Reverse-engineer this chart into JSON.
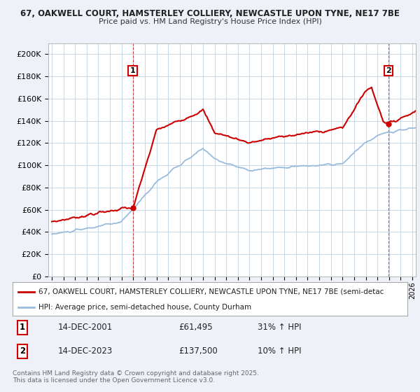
{
  "title1": "67, OAKWELL COURT, HAMSTERLEY COLLIERY, NEWCASTLE UPON TYNE, NE17 7BE",
  "title2": "Price paid vs. HM Land Registry's House Price Index (HPI)",
  "bg_color": "#eef2f8",
  "plot_bg_color": "#ffffff",
  "grid_color": "#c8d8e8",
  "price_color": "#cc0000",
  "hpi_color": "#99bbdd",
  "legend_line1": "67, OAKWELL COURT, HAMSTERLEY COLLIERY, NEWCASTLE UPON TYNE, NE17 7BE (semi-detac",
  "legend_line2": "HPI: Average price, semi-detached house, County Durham",
  "annotation1_date": "14-DEC-2001",
  "annotation1_price": "£61,495",
  "annotation1_hpi": "31% ↑ HPI",
  "annotation2_date": "14-DEC-2023",
  "annotation2_price": "£137,500",
  "annotation2_hpi": "10% ↑ HPI",
  "footnote": "Contains HM Land Registry data © Crown copyright and database right 2025.\nThis data is licensed under the Open Government Licence v3.0.",
  "ylim_min": 0,
  "ylim_max": 200000,
  "yticks": [
    0,
    20000,
    40000,
    60000,
    80000,
    100000,
    120000,
    140000,
    160000,
    180000,
    200000
  ]
}
